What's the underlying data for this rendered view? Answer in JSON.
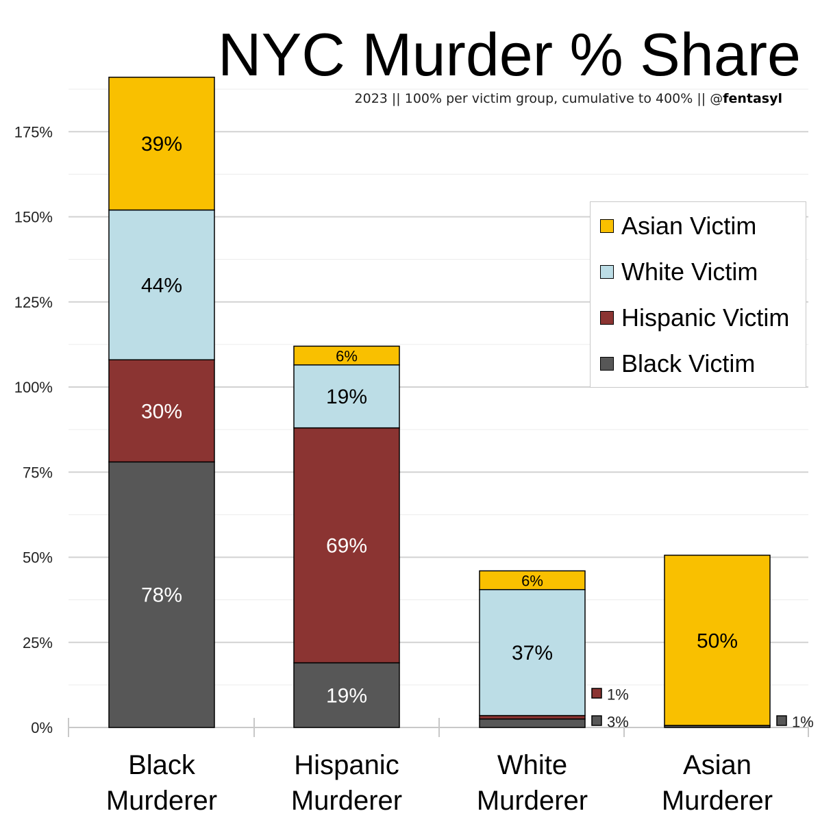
{
  "title": "NYC Murder % Share",
  "subtitle": {
    "prefix": "2023 || 100% per victim group, cumulative to 400% || @",
    "handle": "fentasyl"
  },
  "legend": [
    {
      "label": "Asian Victim",
      "color": "#f9c000"
    },
    {
      "label": "White Victim",
      "color": "#bcdde6"
    },
    {
      "label": "Hispanic Victim",
      "color": "#8b3432"
    },
    {
      "label": "Black Victim",
      "color": "#575757"
    }
  ],
  "chart_data": {
    "type": "bar",
    "stacked": true,
    "title": "NYC Murder % Share",
    "subtitle": "2023 || 100% per victim group, cumulative to 400% || @fentasyl",
    "categories": [
      [
        "Black",
        "Murderer"
      ],
      [
        "Hispanic",
        "Murderer"
      ],
      [
        "White",
        "Murderer"
      ],
      [
        "Asian",
        "Murderer"
      ]
    ],
    "y_ticks": [
      "0%",
      "25%",
      "50%",
      "75%",
      "100%",
      "125%",
      "150%",
      "175%"
    ],
    "ylim": [
      0,
      200
    ],
    "grid": true,
    "legend_position": "right",
    "series": [
      {
        "name": "Black Victim",
        "color": "#575757",
        "values": [
          78,
          19,
          2.5,
          0.6
        ],
        "labels": [
          "78%",
          "19%",
          "3%",
          "1%"
        ],
        "label_color": "#ffffff"
      },
      {
        "name": "Hispanic Victim",
        "color": "#8b3432",
        "values": [
          30,
          69,
          1,
          0
        ],
        "labels": [
          "30%",
          "69%",
          "1%",
          ""
        ],
        "label_color": "#ffffff"
      },
      {
        "name": "White Victim",
        "color": "#bcdde6",
        "values": [
          44,
          18.5,
          37,
          0
        ],
        "labels": [
          "44%",
          "19%",
          "37%",
          ""
        ],
        "label_color": "#000000"
      },
      {
        "name": "Asian Victim",
        "color": "#f9c000",
        "values": [
          39,
          5.5,
          5.5,
          50
        ],
        "labels": [
          "39%",
          "6%",
          "6%",
          "50%"
        ],
        "label_color": "#000000"
      }
    ]
  }
}
